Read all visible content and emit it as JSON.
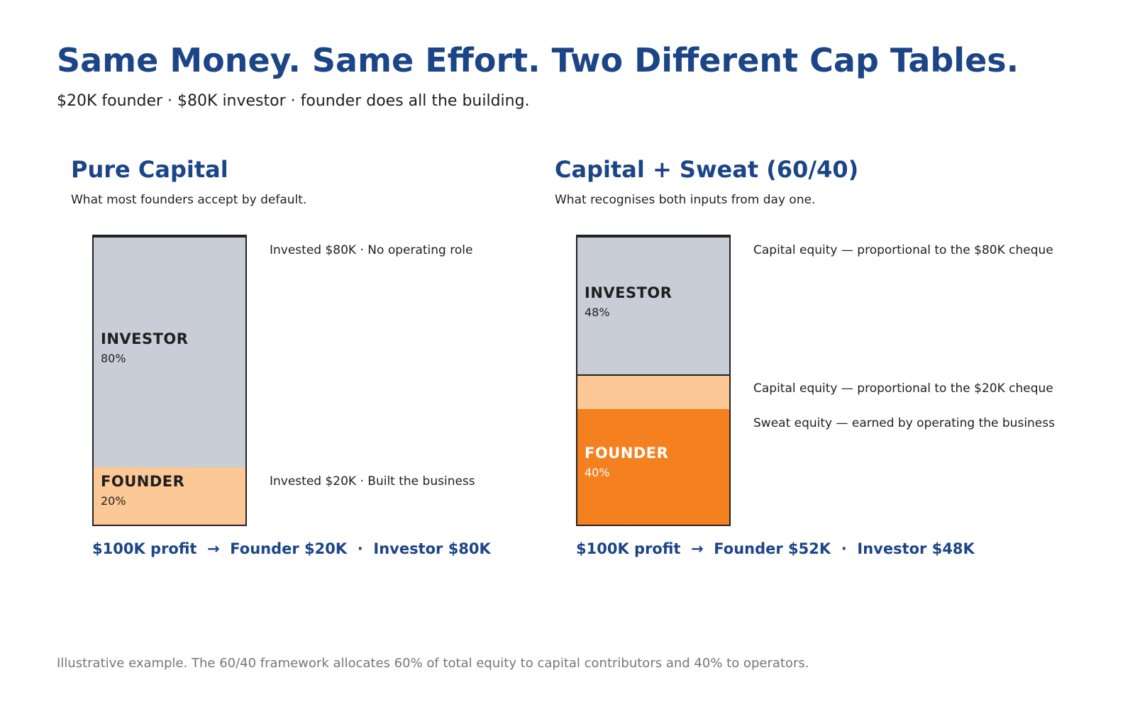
{
  "header": {
    "title": "Same Money. Same Effort. Two Different Cap Tables.",
    "subtitle": "$20K founder · $80K investor · founder does all the building."
  },
  "colors": {
    "title_blue": "#1c4587",
    "investor_grey": "#c9cdd7",
    "founder_capital_peach": "#fcc896",
    "founder_sweat_orange": "#f58020"
  },
  "chart_data": [
    {
      "type": "bar",
      "stacked": true,
      "title": "Pure Capital",
      "subtitle": "What most founders accept by default.",
      "segments": [
        {
          "name": "FOUNDER",
          "label": "20%",
          "value": 20,
          "color": "#fcc896",
          "text_color": "#1f1f1f",
          "note": "Invested $20K · Built the business"
        },
        {
          "name": "INVESTOR",
          "label": "80%",
          "value": 80,
          "color": "#c9cdd7",
          "text_color": "#1f1f1f",
          "note": "Invested $80K · No operating role"
        }
      ],
      "summary": "$100K profit  →  Founder $20K  ·  Investor $80K"
    },
    {
      "type": "bar",
      "stacked": true,
      "title": "Capital + Sweat (60/40)",
      "subtitle": "What recognises both inputs from day one.",
      "segments": [
        {
          "name": "FOUNDER",
          "label": "40%",
          "value": 40,
          "color": "#f58020",
          "text_color": "#ffffff",
          "note": "Sweat equity — earned by operating the business"
        },
        {
          "name": "",
          "label": "",
          "value": 12,
          "color": "#fcc896",
          "text_color": "#1f1f1f",
          "note": "Capital equity — proportional to the $20K cheque"
        },
        {
          "name": "INVESTOR",
          "label": "48%",
          "value": 48,
          "color": "#c9cdd7",
          "text_color": "#1f1f1f",
          "note": "Capital equity — proportional to the $80K cheque"
        }
      ],
      "summary": "$100K profit  →  Founder $52K  ·  Investor $48K"
    }
  ],
  "footer": {
    "note": "Illustrative example. The 60/40 framework allocates 60% of total equity to capital contributors and 40% to operators."
  }
}
